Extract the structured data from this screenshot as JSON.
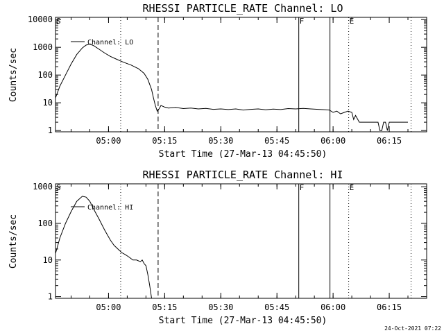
{
  "footer_timestamp": "24-Oct-2021 07:22",
  "chart_data": [
    {
      "type": "line",
      "title": "RHESSI PARTICLE_RATE Channel: LO",
      "xlabel": "Start Time (27-Mar-13 04:45:50)",
      "ylabel": "Counts/sec",
      "y_scale": "log",
      "ylim": [
        0.9,
        12000
      ],
      "xlim": [
        "04:45:50",
        "06:25:00"
      ],
      "x_ticks": [
        "05:00",
        "05:15",
        "05:30",
        "05:45",
        "06:00",
        "06:15"
      ],
      "y_ticks": [
        "1",
        "10",
        "100",
        "1000",
        "10000"
      ],
      "legend": {
        "label": "Channel: LO",
        "placement": "top-left"
      },
      "markers": [
        {
          "label": "S",
          "time": "04:45:50",
          "style": "none"
        },
        {
          "label": "",
          "time": "05:03:15",
          "style": "dotted"
        },
        {
          "label": "",
          "time": "05:13:15",
          "style": "dashed"
        },
        {
          "label": "F",
          "time": "05:50:50",
          "style": "solid"
        },
        {
          "label": "",
          "time": "05:59:10",
          "style": "solid"
        },
        {
          "label": "E",
          "time": "06:04:10",
          "style": "dotted"
        },
        {
          "label": "",
          "time": "06:20:50",
          "style": "dotted"
        }
      ],
      "series": [
        {
          "x": [
            "04:45:50",
            "04:47:00",
            "04:48:30",
            "04:50:00",
            "04:51:30",
            "04:53:00",
            "04:54:00",
            "04:55:00",
            "04:56:00",
            "04:57:30",
            "04:59:00",
            "05:00:30",
            "05:02:00",
            "05:04:00",
            "05:06:00",
            "05:08:00",
            "05:09:30",
            "05:10:30",
            "05:11:30",
            "05:12:00",
            "05:12:30",
            "05:13:00",
            "05:13:30",
            "05:14:00",
            "05:15:00",
            "05:16:00",
            "05:18:00",
            "05:20:00",
            "05:22:00",
            "05:24:00",
            "05:26:00",
            "05:28:00",
            "05:30:00",
            "05:32:00",
            "05:34:00",
            "05:36:00",
            "05:38:00",
            "05:40:00",
            "05:42:00",
            "05:44:00",
            "05:46:00",
            "05:48:00",
            "05:50:00",
            "05:52:00",
            "05:54:00",
            "05:56:00",
            "05:58:00",
            "05:59:00",
            "06:00:00",
            "06:01:00",
            "06:02:00",
            "06:03:00",
            "06:04:00",
            "06:05:00",
            "06:05:30",
            "06:06:00",
            "06:07:00",
            "06:08:00",
            "06:09:00",
            "06:10:00",
            "06:11:00",
            "06:12:00",
            "06:12:30",
            "06:13:00",
            "06:13:30",
            "06:14:00",
            "06:14:30",
            "06:15:00",
            "06:16:00",
            "06:18:00",
            "06:20:00"
          ],
          "values": [
            15,
            40,
            100,
            250,
            550,
            950,
            1200,
            1300,
            1150,
            850,
            620,
            470,
            380,
            290,
            230,
            170,
            115,
            70,
            30,
            15,
            8,
            5,
            6,
            8,
            7,
            6.5,
            6.8,
            6.2,
            6.5,
            6.0,
            6.3,
            5.8,
            6.0,
            5.7,
            6.0,
            5.5,
            5.8,
            6.0,
            5.6,
            5.9,
            5.7,
            6.2,
            6.0,
            6.3,
            6.0,
            5.8,
            5.6,
            5.5,
            4.5,
            5.0,
            4.0,
            4.5,
            5.0,
            4.5,
            2.5,
            3.5,
            2.0,
            2.0,
            2.0,
            2.0,
            2.0,
            2.0,
            1.0,
            1.0,
            2.0,
            2.0,
            1.0,
            2.0,
            2.0,
            2.0,
            2.0
          ]
        }
      ]
    },
    {
      "type": "line",
      "title": "RHESSI PARTICLE_RATE Channel: HI",
      "xlabel": "Start Time (27-Mar-13 04:45:50)",
      "ylabel": "Counts/sec",
      "y_scale": "log",
      "ylim": [
        0.9,
        1200
      ],
      "xlim": [
        "04:45:50",
        "06:25:00"
      ],
      "x_ticks": [
        "05:00",
        "05:15",
        "05:30",
        "05:45",
        "06:00",
        "06:15"
      ],
      "y_ticks": [
        "1",
        "10",
        "100",
        "1000"
      ],
      "legend": {
        "label": "Channel: HI",
        "placement": "top-left"
      },
      "markers": [
        {
          "label": "S",
          "time": "04:45:50",
          "style": "none"
        },
        {
          "label": "",
          "time": "05:03:15",
          "style": "dotted"
        },
        {
          "label": "",
          "time": "05:13:15",
          "style": "dashed"
        },
        {
          "label": "F",
          "time": "05:50:50",
          "style": "solid"
        },
        {
          "label": "",
          "time": "05:59:10",
          "style": "solid"
        },
        {
          "label": "E",
          "time": "06:04:10",
          "style": "dotted"
        },
        {
          "label": "",
          "time": "06:20:50",
          "style": "dotted"
        }
      ],
      "series": [
        {
          "x": [
            "04:45:50",
            "04:47:00",
            "04:48:30",
            "04:50:00",
            "04:51:30",
            "04:53:00",
            "04:54:00",
            "04:55:00",
            "04:56:00",
            "04:57:30",
            "04:59:00",
            "05:00:30",
            "05:01:30",
            "05:02:30",
            "05:03:30",
            "05:04:30",
            "05:05:30",
            "05:06:30",
            "05:07:30",
            "05:08:30",
            "05:09:00",
            "05:09:30",
            "05:10:00",
            "05:10:30",
            "05:11:00",
            "05:11:30"
          ],
          "values": [
            15,
            40,
            100,
            210,
            400,
            550,
            520,
            400,
            250,
            130,
            65,
            35,
            25,
            20,
            16,
            14,
            12,
            10,
            10,
            9,
            10,
            8,
            7,
            4,
            2,
            0.9
          ]
        }
      ]
    }
  ]
}
